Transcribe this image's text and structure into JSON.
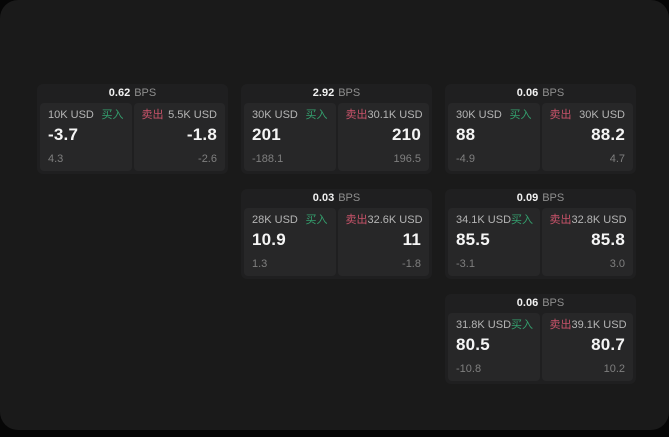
{
  "labels": {
    "bps": "BPS",
    "buy": "买入",
    "sell": "卖出"
  },
  "colors": {
    "buy_green": "#34a06e",
    "sell_red": "#c9536a",
    "window_bg": "#1a1a1a",
    "card_bg": "#1f1f20",
    "panel_bg": "#272728"
  },
  "cards": [
    {
      "col": 0,
      "row": 0,
      "bps": "0.62",
      "buy": {
        "amount": "10K USD",
        "big": "-3.7",
        "small": "4.3"
      },
      "sell": {
        "amount": "5.5K USD",
        "big": "-1.8",
        "small": "-2.6"
      }
    },
    {
      "col": 1,
      "row": 0,
      "bps": "2.92",
      "buy": {
        "amount": "30K USD",
        "big": "201",
        "small": "-188.1"
      },
      "sell": {
        "amount": "30.1K USD",
        "big": "210",
        "small": "196.5"
      }
    },
    {
      "col": 2,
      "row": 0,
      "bps": "0.06",
      "buy": {
        "amount": "30K USD",
        "big": "88",
        "small": "-4.9"
      },
      "sell": {
        "amount": "30K USD",
        "big": "88.2",
        "small": "4.7"
      }
    },
    {
      "col": 1,
      "row": 1,
      "bps": "0.03",
      "buy": {
        "amount": "28K USD",
        "big": "10.9",
        "small": "1.3"
      },
      "sell": {
        "amount": "32.6K USD",
        "big": "11",
        "small": "-1.8"
      }
    },
    {
      "col": 2,
      "row": 1,
      "bps": "0.09",
      "buy": {
        "amount": "34.1K USD",
        "big": "85.5",
        "small": "-3.1"
      },
      "sell": {
        "amount": "32.8K USD",
        "big": "85.8",
        "small": "3.0"
      }
    },
    {
      "col": 2,
      "row": 2,
      "bps": "0.06",
      "buy": {
        "amount": "31.8K USD",
        "big": "80.5",
        "small": "-10.8"
      },
      "sell": {
        "amount": "39.1K USD",
        "big": "80.7",
        "small": "10.2"
      }
    }
  ]
}
